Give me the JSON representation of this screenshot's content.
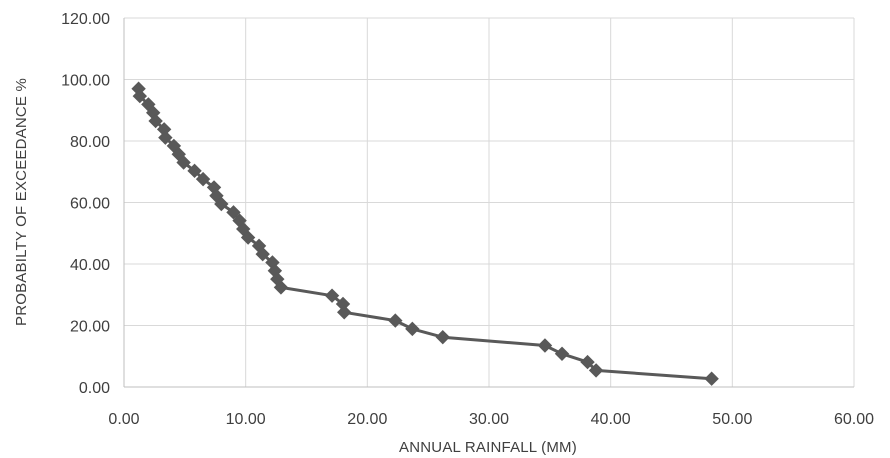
{
  "chart_data": {
    "type": "scatter",
    "title": "",
    "xlabel": "ANNUAL RAINFALL (MM)",
    "ylabel": "PROBABILTY OF EXCEEDANCE %",
    "xlim": [
      0,
      60
    ],
    "ylim": [
      0,
      120
    ],
    "x_ticks": [
      "0.00",
      "10.00",
      "20.00",
      "30.00",
      "40.00",
      "50.00",
      "60.00"
    ],
    "y_ticks": [
      "0.00",
      "20.00",
      "40.00",
      "60.00",
      "80.00",
      "100.00",
      "120.00"
    ],
    "grid": true,
    "legend": "none",
    "series_color": "#595959",
    "marker": "diamond",
    "series": [
      {
        "x": [
          1.2,
          1.3,
          2.0,
          2.4,
          2.6,
          3.3,
          3.4,
          4.1,
          4.5,
          4.9,
          5.8,
          6.5,
          7.4,
          7.6,
          8.0,
          9.0,
          9.5,
          9.8,
          10.2,
          11.1,
          11.4,
          12.2,
          12.4,
          12.6,
          12.9,
          17.1,
          18.0,
          18.1,
          22.3,
          23.7,
          26.2,
          34.6,
          36.0,
          38.1,
          38.8,
          48.3
        ],
        "y": [
          97.0,
          94.6,
          91.9,
          89.2,
          86.5,
          83.8,
          81.1,
          78.4,
          75.7,
          73.0,
          70.3,
          67.6,
          64.9,
          62.2,
          59.5,
          56.8,
          54.1,
          51.4,
          48.6,
          45.9,
          43.2,
          40.5,
          37.8,
          35.1,
          32.4,
          29.7,
          27.0,
          24.3,
          21.6,
          18.9,
          16.2,
          13.5,
          10.8,
          8.1,
          5.4,
          2.7
        ]
      }
    ]
  }
}
